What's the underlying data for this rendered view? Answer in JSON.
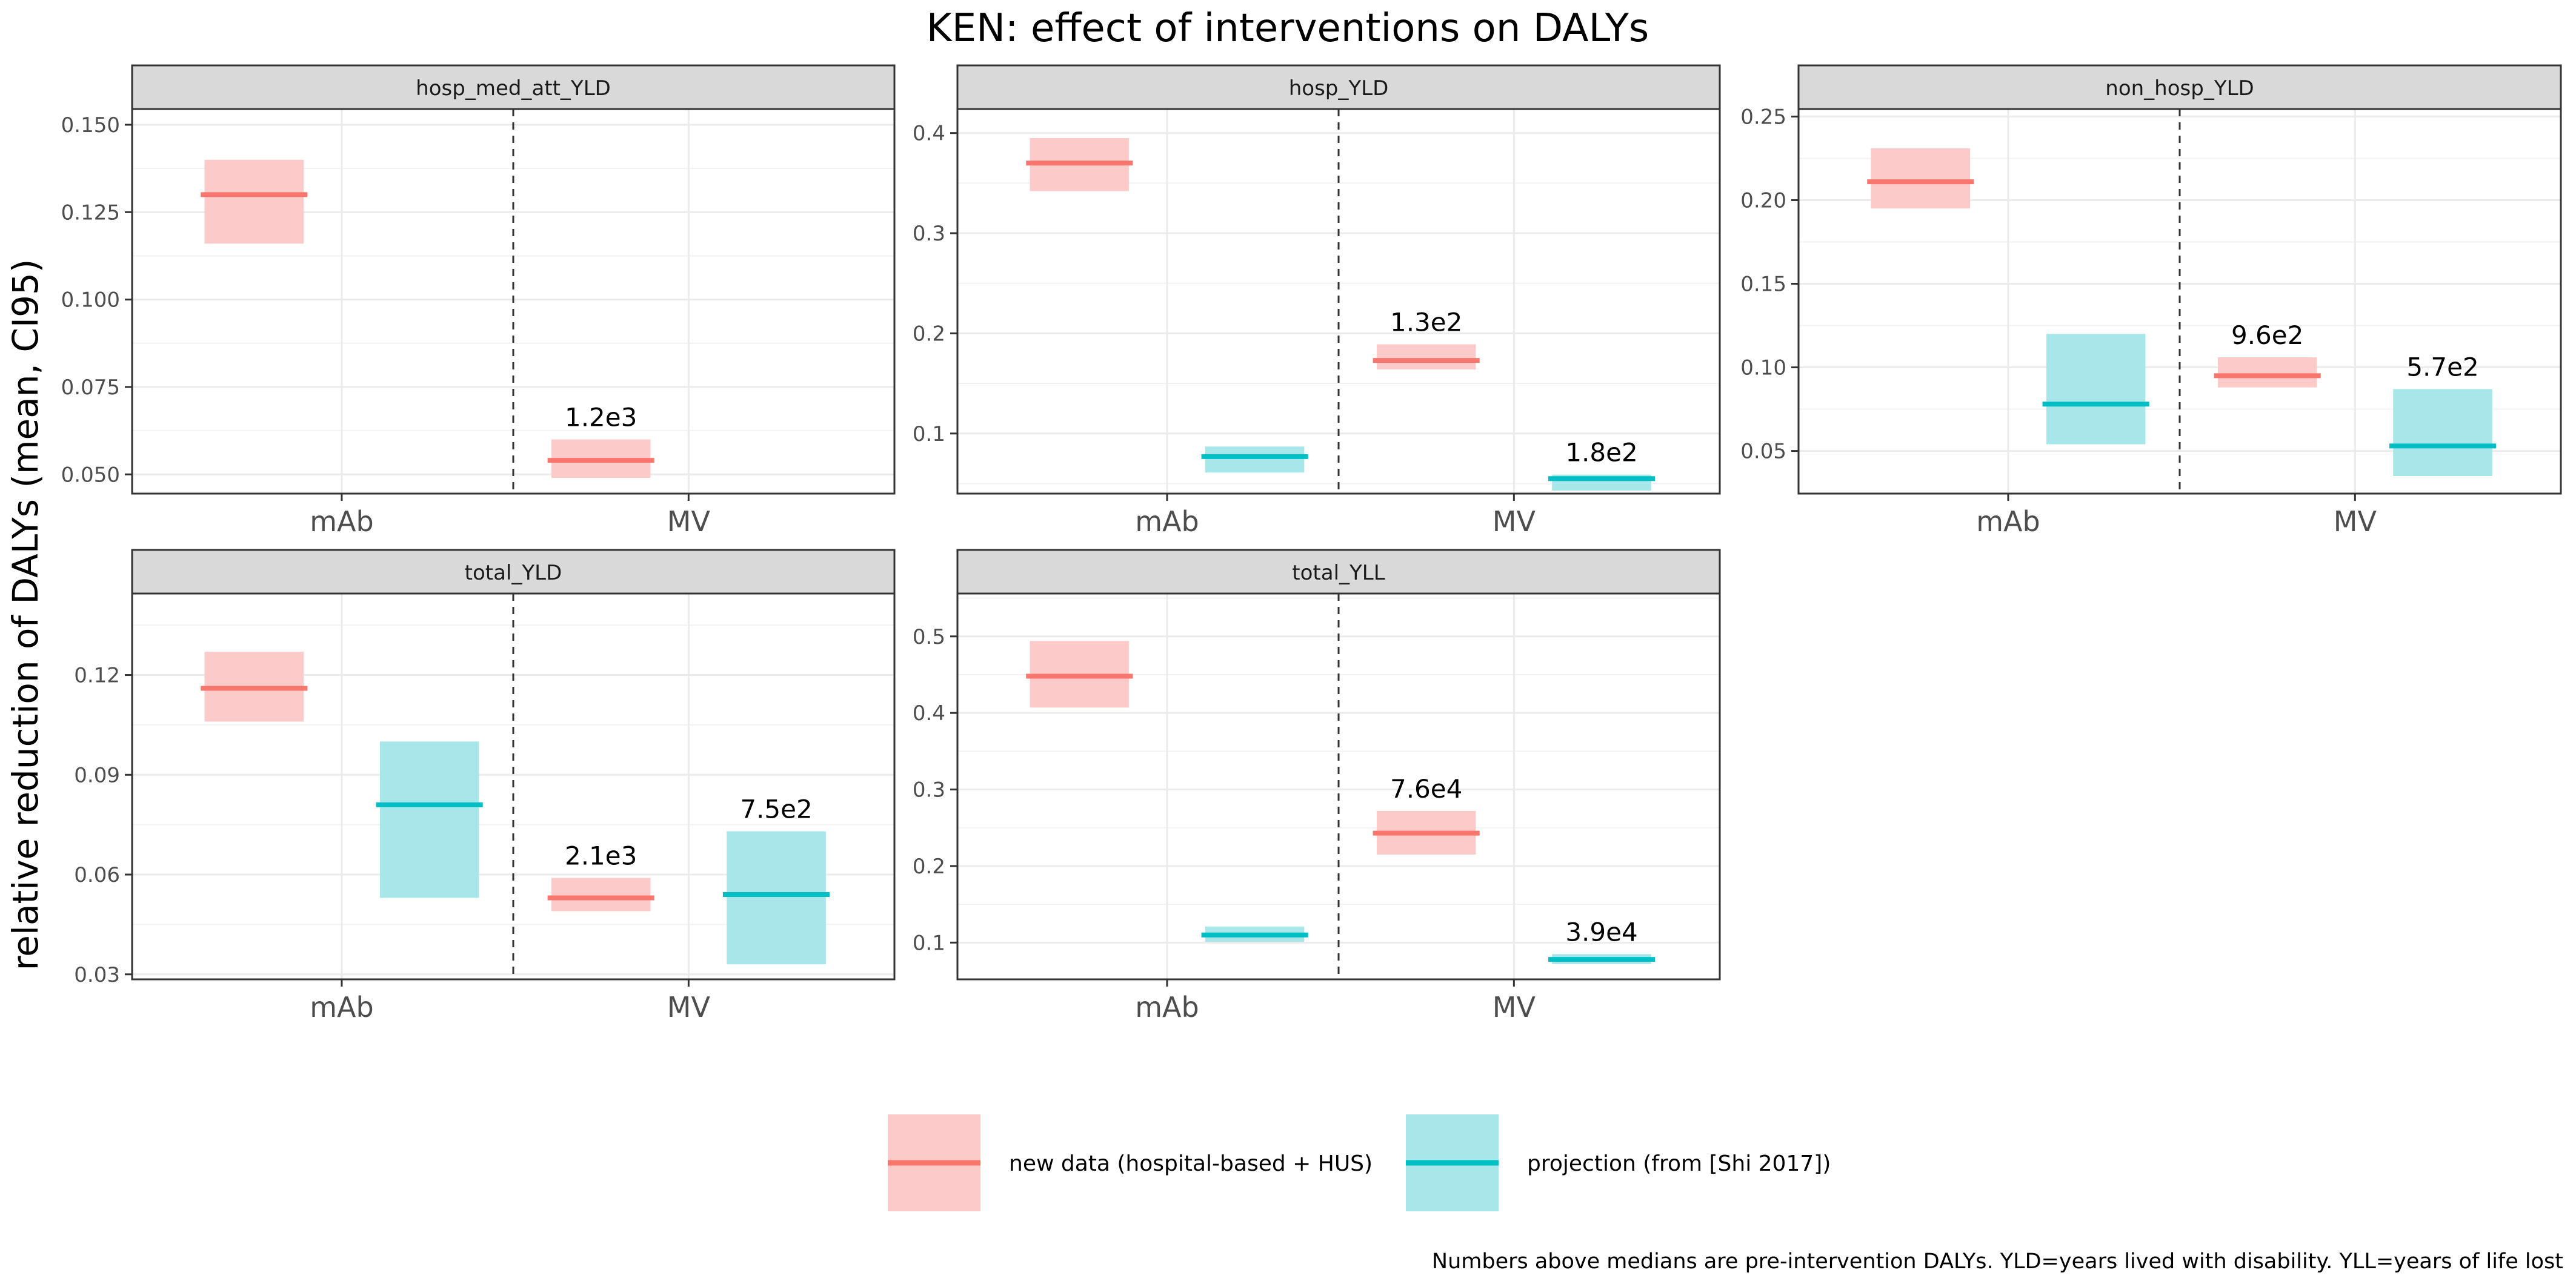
{
  "title": "KEN: effect of interventions on DALYs",
  "ylabel": "relative reduction of DALYs (mean, CI95)",
  "caption": "Numbers above medians are pre-intervention DALYs. YLD=years lived with disability. YLL=years of life lost",
  "legend": {
    "items": [
      {
        "label": "new data (hospital-based + HUS)",
        "color": "#F8766D"
      },
      {
        "label": "projection (from [Shi 2017])",
        "color": "#00BFC4"
      }
    ]
  },
  "chart_data": {
    "type": "bar",
    "categories": [
      "mAb",
      "MV"
    ],
    "series_names": [
      "new data (hospital-based + HUS)",
      "projection (from [Shi 2017])"
    ],
    "colors": {
      "new": "#F8766D",
      "new_fill": "#FDCACA",
      "proj": "#00BFC4",
      "proj_fill": "#A7E7E9"
    },
    "grid": true,
    "legend_position": "bottom",
    "panels": [
      {
        "name": "hosp_med_att_YLD",
        "ylim": [
          0.0445,
          0.1545
        ],
        "yticks": [
          0.05,
          0.075,
          0.1,
          0.125,
          0.15
        ],
        "yticklabels": [
          "0.050",
          "0.075",
          "0.100",
          "0.125",
          "0.150"
        ],
        "bars": [
          {
            "category": "mAb",
            "series": 0,
            "mean": 0.13,
            "lo": 0.116,
            "hi": 0.14,
            "label": ""
          },
          {
            "category": "MV",
            "series": 0,
            "mean": 0.054,
            "lo": 0.049,
            "hi": 0.06,
            "label": "1.2e3"
          }
        ]
      },
      {
        "name": "hosp_YLD",
        "ylim": [
          0.04,
          0.424
        ],
        "yticks": [
          0.1,
          0.2,
          0.3,
          0.4
        ],
        "yticklabels": [
          "0.1",
          "0.2",
          "0.3",
          "0.4"
        ],
        "bars": [
          {
            "category": "mAb",
            "series": 0,
            "mean": 0.37,
            "lo": 0.342,
            "hi": 0.395,
            "label": ""
          },
          {
            "category": "mAb",
            "series": 1,
            "mean": 0.077,
            "lo": 0.061,
            "hi": 0.087,
            "label": ""
          },
          {
            "category": "MV",
            "series": 0,
            "mean": 0.173,
            "lo": 0.164,
            "hi": 0.189,
            "label": "1.3e2"
          },
          {
            "category": "MV",
            "series": 1,
            "mean": 0.055,
            "lo": 0.043,
            "hi": 0.059,
            "label": "1.8e2"
          }
        ]
      },
      {
        "name": "non_hosp_YLD",
        "ylim": [
          0.0245,
          0.2545
        ],
        "yticks": [
          0.05,
          0.1,
          0.15,
          0.2,
          0.25
        ],
        "yticklabels": [
          "0.05",
          "0.10",
          "0.15",
          "0.20",
          "0.25"
        ],
        "bars": [
          {
            "category": "mAb",
            "series": 0,
            "mean": 0.211,
            "lo": 0.195,
            "hi": 0.231,
            "label": ""
          },
          {
            "category": "mAb",
            "series": 1,
            "mean": 0.078,
            "lo": 0.054,
            "hi": 0.12,
            "label": ""
          },
          {
            "category": "MV",
            "series": 0,
            "mean": 0.095,
            "lo": 0.088,
            "hi": 0.106,
            "label": "9.6e2"
          },
          {
            "category": "MV",
            "series": 1,
            "mean": 0.053,
            "lo": 0.035,
            "hi": 0.087,
            "label": "5.7e2"
          }
        ]
      },
      {
        "name": "total_YLD",
        "ylim": [
          0.0285,
          0.1445
        ],
        "yticks": [
          0.03,
          0.06,
          0.09,
          0.12
        ],
        "yticklabels": [
          "0.03",
          "0.06",
          "0.09",
          "0.12"
        ],
        "bars": [
          {
            "category": "mAb",
            "series": 0,
            "mean": 0.116,
            "lo": 0.106,
            "hi": 0.127,
            "label": ""
          },
          {
            "category": "mAb",
            "series": 1,
            "mean": 0.081,
            "lo": 0.053,
            "hi": 0.1,
            "label": ""
          },
          {
            "category": "MV",
            "series": 0,
            "mean": 0.053,
            "lo": 0.049,
            "hi": 0.059,
            "label": "2.1e3"
          },
          {
            "category": "MV",
            "series": 1,
            "mean": 0.054,
            "lo": 0.033,
            "hi": 0.073,
            "label": "7.5e2"
          }
        ]
      },
      {
        "name": "total_YLL",
        "ylim": [
          0.052,
          0.556
        ],
        "yticks": [
          0.1,
          0.2,
          0.3,
          0.4,
          0.5
        ],
        "yticklabels": [
          "0.1",
          "0.2",
          "0.3",
          "0.4",
          "0.5"
        ],
        "bars": [
          {
            "category": "mAb",
            "series": 0,
            "mean": 0.448,
            "lo": 0.407,
            "hi": 0.494,
            "label": ""
          },
          {
            "category": "mAb",
            "series": 1,
            "mean": 0.11,
            "lo": 0.101,
            "hi": 0.121,
            "label": ""
          },
          {
            "category": "MV",
            "series": 0,
            "mean": 0.243,
            "lo": 0.215,
            "hi": 0.272,
            "label": "7.6e4"
          },
          {
            "category": "MV",
            "series": 1,
            "mean": 0.078,
            "lo": 0.072,
            "hi": 0.085,
            "label": "3.9e4"
          }
        ]
      }
    ]
  }
}
